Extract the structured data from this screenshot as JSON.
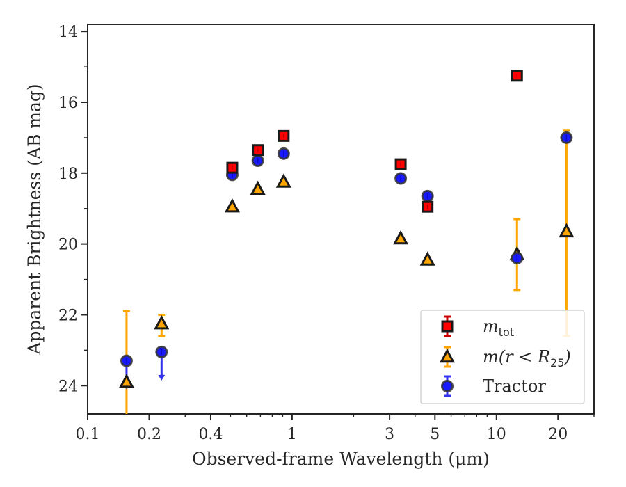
{
  "chart_data": {
    "type": "scatter",
    "xscale": "log",
    "xlim": [
      0.1,
      30
    ],
    "ylim": [
      24.8,
      13.8
    ],
    "y_inverted": true,
    "xlabel": "Observed-frame Wavelength (μm)",
    "ylabel": "Apparent Brightness (AB mag)",
    "x_ticks": [
      {
        "value": 0.1,
        "label": "0.1"
      },
      {
        "value": 0.2,
        "label": "0.2"
      },
      {
        "value": 0.4,
        "label": "0.4"
      },
      {
        "value": 1,
        "label": "1"
      },
      {
        "value": 3,
        "label": "3"
      },
      {
        "value": 5,
        "label": "5"
      },
      {
        "value": 10,
        "label": "10"
      },
      {
        "value": 20,
        "label": "20"
      }
    ],
    "y_ticks": [
      {
        "value": 14,
        "label": "14"
      },
      {
        "value": 16,
        "label": "16"
      },
      {
        "value": 18,
        "label": "18"
      },
      {
        "value": 20,
        "label": "20"
      },
      {
        "value": 22,
        "label": "22"
      },
      {
        "value": 24,
        "label": "24"
      }
    ],
    "grid": false,
    "legend_position": "lower-right",
    "series": [
      {
        "name": "m_tot",
        "label_base": "m",
        "label_sub": "tot",
        "marker": "square",
        "color": "#ff0000",
        "edge": "#1a1a1a",
        "points": [
          {
            "x": 0.51,
            "y": 17.85
          },
          {
            "x": 0.68,
            "y": 17.35
          },
          {
            "x": 0.91,
            "y": 16.95
          },
          {
            "x": 3.4,
            "y": 17.75
          },
          {
            "x": 4.6,
            "y": 18.95
          },
          {
            "x": 12.6,
            "y": 15.25
          }
        ]
      },
      {
        "name": "m(r < R25)",
        "label_base": "m(r < R",
        "label_sub": "25",
        "label_end": ")",
        "marker": "triangle",
        "color": "#ffa500",
        "edge": "#1a1a1a",
        "points": [
          {
            "x": 0.155,
            "y": 23.9,
            "err_low": 24.8,
            "err_high": 21.9
          },
          {
            "x": 0.23,
            "y": 22.25,
            "err_low": 22.6,
            "err_high": 22.0
          },
          {
            "x": 0.51,
            "y": 18.95
          },
          {
            "x": 0.68,
            "y": 18.45
          },
          {
            "x": 0.91,
            "y": 18.25
          },
          {
            "x": 3.4,
            "y": 19.85
          },
          {
            "x": 4.6,
            "y": 20.45
          },
          {
            "x": 12.6,
            "y": 20.3,
            "err_low": 21.3,
            "err_high": 19.3
          },
          {
            "x": 22,
            "y": 19.65,
            "err_low": 22.6,
            "err_high": 16.8
          }
        ]
      },
      {
        "name": "Tractor",
        "marker": "circle",
        "color": "#1a1aff",
        "edge": "#333333",
        "points": [
          {
            "x": 0.155,
            "y": 23.3,
            "upper_limit": true
          },
          {
            "x": 0.23,
            "y": 23.05,
            "upper_limit": true
          },
          {
            "x": 0.51,
            "y": 18.05
          },
          {
            "x": 0.68,
            "y": 17.65
          },
          {
            "x": 0.91,
            "y": 17.45
          },
          {
            "x": 3.4,
            "y": 18.15
          },
          {
            "x": 4.6,
            "y": 18.65
          },
          {
            "x": 12.6,
            "y": 20.4
          },
          {
            "x": 22,
            "y": 17.0
          }
        ]
      }
    ]
  }
}
